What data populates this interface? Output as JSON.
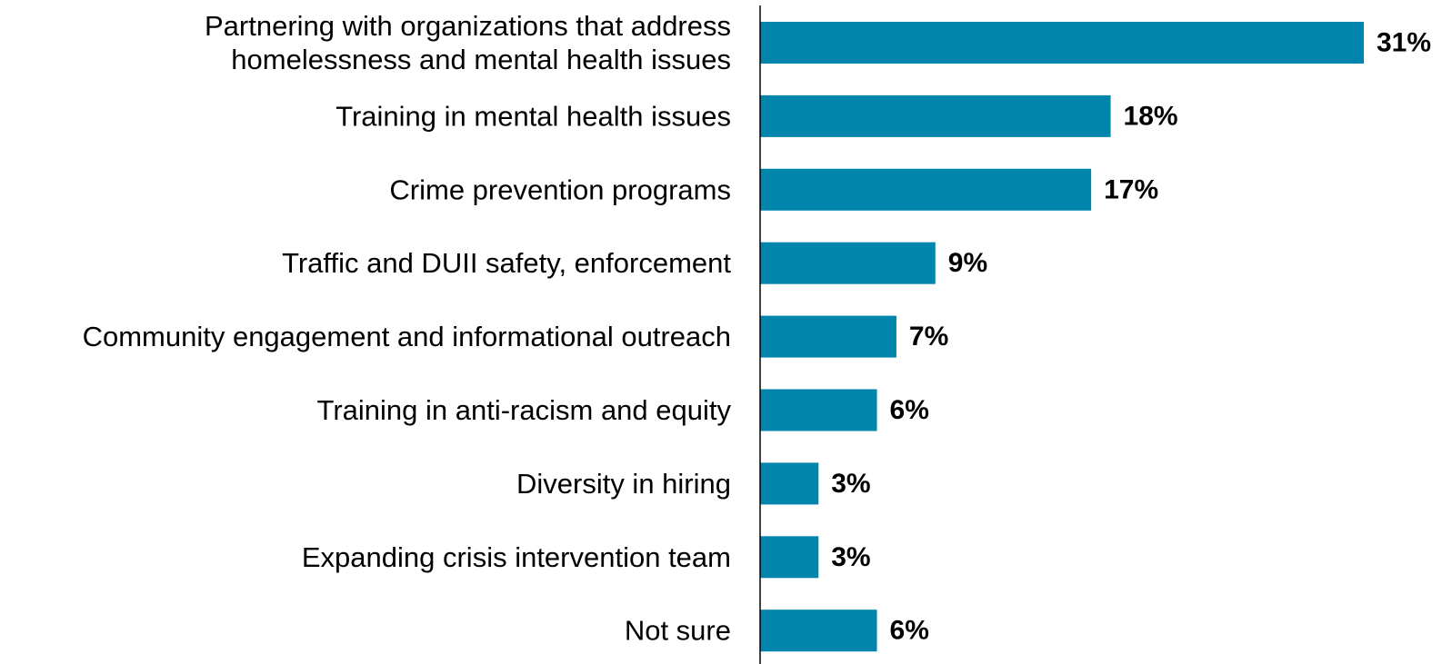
{
  "chart_data": {
    "type": "bar",
    "orientation": "horizontal",
    "categories": [
      [
        "Partnering with organizations that address",
        "homelessness and mental health issues"
      ],
      [
        "Training in mental health issues"
      ],
      [
        "Crime prevention programs"
      ],
      [
        "Traffic and DUII safety, enforcement"
      ],
      [
        "Community engagement and informational outreach"
      ],
      [
        "Training in anti-racism and equity"
      ],
      [
        "Diversity in hiring"
      ],
      [
        "Expanding crisis intervention team"
      ],
      [
        "Not sure"
      ]
    ],
    "values": [
      31,
      18,
      17,
      9,
      7,
      6,
      3,
      3,
      6
    ],
    "value_labels": [
      "31%",
      "18%",
      "17%",
      "9%",
      "7%",
      "6%",
      "3%",
      "3%",
      "6%"
    ],
    "title": "",
    "xlabel": "",
    "ylabel": "",
    "xlim": [
      0,
      31
    ],
    "grid": false,
    "legend": "none",
    "bar_color": "#0085AD",
    "axis_color": "#000000"
  }
}
